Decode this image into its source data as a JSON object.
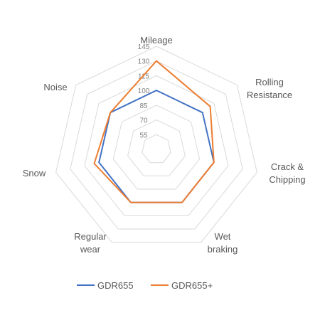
{
  "chart_data": {
    "type": "radar",
    "categories": [
      [
        "Mileage"
      ],
      [
        "Rolling",
        "Resistance"
      ],
      [
        "Crack &",
        "Chipping"
      ],
      [
        "Wet",
        "braking"
      ],
      [
        "Regular",
        "wear"
      ],
      [
        "Snow"
      ],
      [
        "Noise"
      ]
    ],
    "ticks": [
      55,
      70,
      85,
      100,
      115,
      130,
      145
    ],
    "rmin": 40,
    "rmax": 145,
    "series": [
      {
        "name": "GDR655",
        "color": "#4472C4",
        "values": [
          100,
          100,
          100,
          100,
          100,
          100,
          100
        ]
      },
      {
        "name": "GDR655+",
        "color": "#ED7D31",
        "values": [
          130,
          110,
          100,
          100,
          100,
          105,
          100
        ]
      }
    ],
    "legend_position": "bottom"
  }
}
